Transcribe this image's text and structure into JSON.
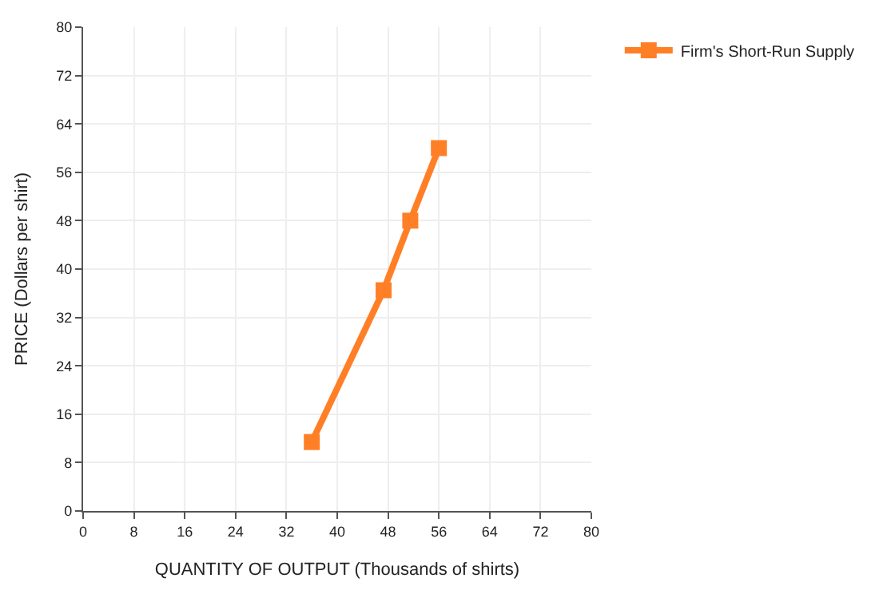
{
  "chart_data": {
    "type": "line",
    "xlabel": "QUANTITY OF OUTPUT (Thousands of shirts)",
    "ylabel": "PRICE (Dollars per shirt)",
    "x": [
      36,
      47.3,
      51.5,
      56
    ],
    "series": [
      {
        "name": "Firm's Short-Run Supply",
        "color": "#ff7f27",
        "values": [
          11.4,
          36.5,
          48,
          60
        ]
      }
    ],
    "xlim": [
      0,
      80
    ],
    "xticks": [
      0,
      8,
      16,
      24,
      32,
      40,
      48,
      56,
      64,
      72,
      80
    ],
    "ylim": [
      0,
      80
    ],
    "yticks": [
      0,
      8,
      16,
      24,
      32,
      40,
      48,
      56,
      64,
      72,
      80
    ],
    "grid": true,
    "legend": "top right",
    "marker": "square",
    "line_style": "solid"
  }
}
